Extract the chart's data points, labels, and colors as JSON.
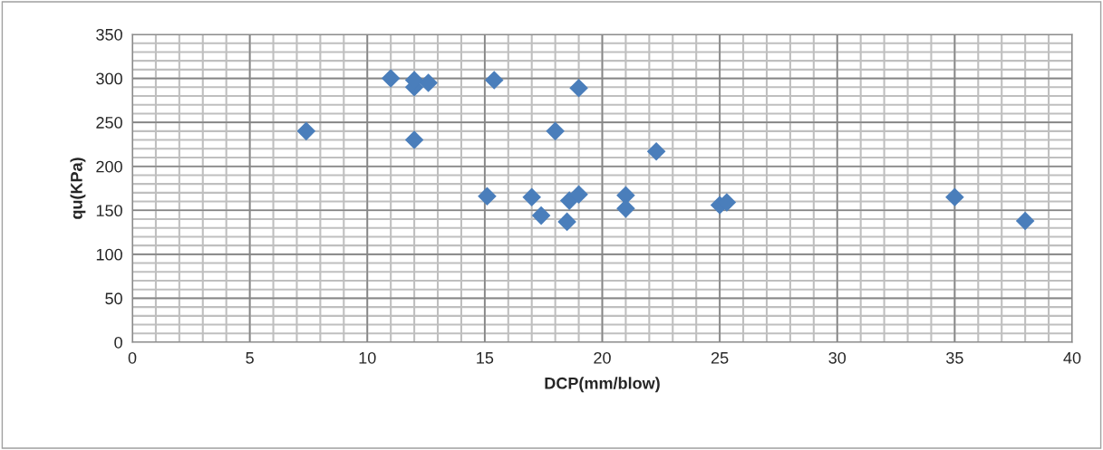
{
  "chart_data": {
    "type": "scatter",
    "xlabel": "DCP(mm/blow)",
    "ylabel": "qu(KPa)",
    "x": [
      7.4,
      11,
      12,
      12.6,
      12,
      15.4,
      19,
      18,
      22.3,
      15.1,
      17,
      17.4,
      18.5,
      18.6,
      19,
      21,
      21,
      25,
      25.3,
      35,
      38,
      12
    ],
    "values": [
      240,
      300,
      290,
      295,
      230,
      298,
      289,
      240,
      217,
      166,
      165,
      144,
      137,
      161,
      168,
      167,
      152,
      156,
      159,
      165,
      138,
      298
    ],
    "color": "#4a7ebb",
    "marker": "diamond",
    "xlim": [
      0,
      40
    ],
    "xticks": [
      0,
      5,
      10,
      15,
      20,
      25,
      30,
      35,
      40
    ],
    "ylim": [
      0,
      350
    ],
    "yticks": [
      0,
      50,
      100,
      150,
      200,
      250,
      300,
      350
    ],
    "grid": true,
    "legend": false
  }
}
